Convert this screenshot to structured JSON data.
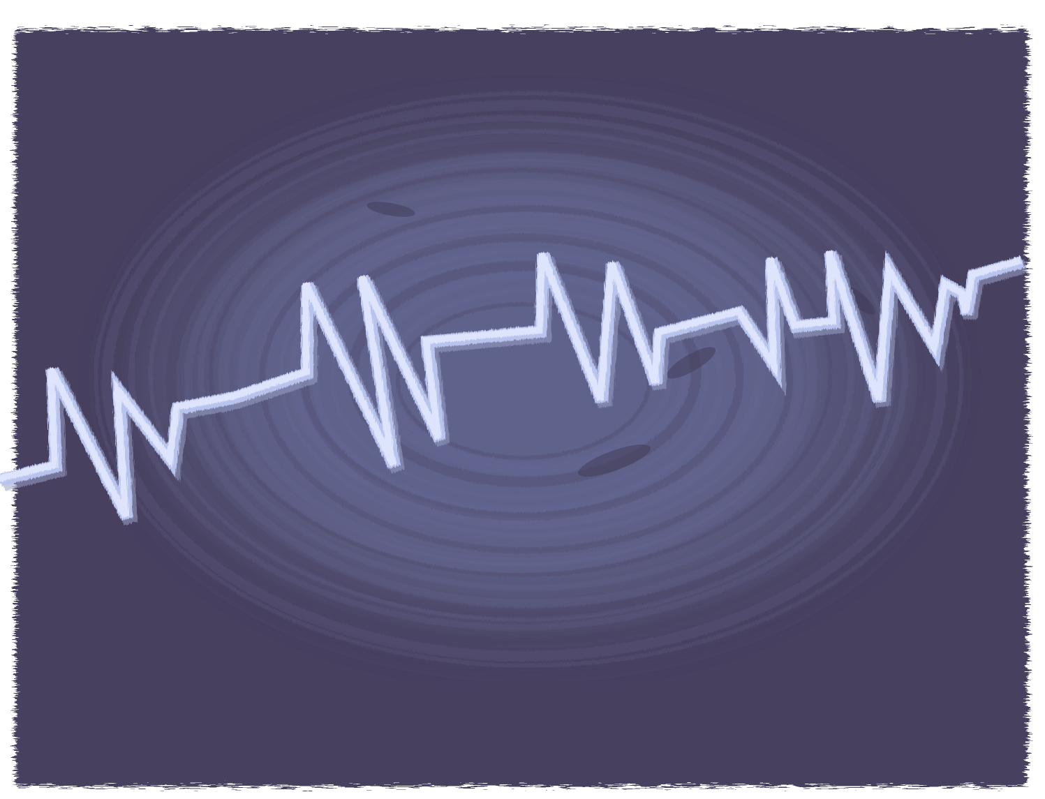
{
  "artwork": {
    "subject": "heartbeat-waveform",
    "colors": {
      "paper": "#ffffff",
      "background_dark": "#463f5e",
      "background_mid": "#575679",
      "background_glow": "#6a6f9d",
      "waveform_light": "#dde4fb",
      "waveform_mid": "#b8c4ee",
      "waveform_shadow": "#9aa3c8",
      "scuff": "#3b3550"
    }
  }
}
